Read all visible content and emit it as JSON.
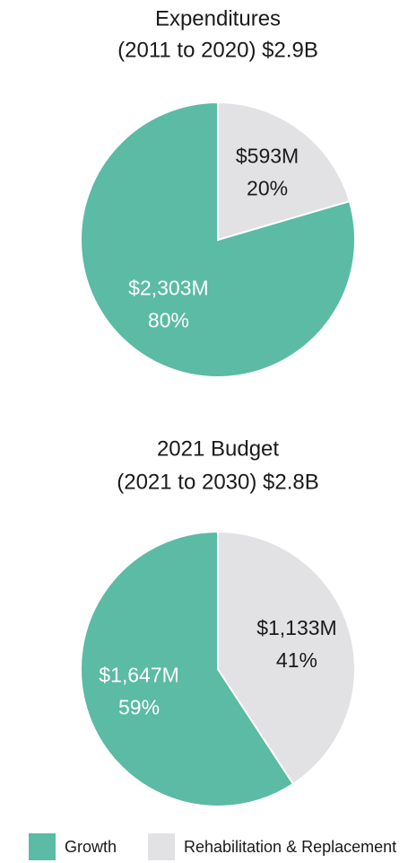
{
  "chart_data": [
    {
      "type": "pie",
      "title": "Expenditures",
      "subtitle": "(2011 to 2020) $2.9B",
      "values": [
        2303,
        593
      ],
      "value_labels": [
        "$2,303M",
        "$593M"
      ],
      "shares": [
        80,
        20
      ],
      "share_labels": [
        "80%",
        "20%"
      ]
    },
    {
      "type": "pie",
      "title": "2021 Budget",
      "subtitle": "(2021 to 2030) $2.8B",
      "values": [
        1647,
        1133
      ],
      "value_labels": [
        "$1,647M",
        "$1,133M"
      ],
      "shares": [
        59,
        41
      ],
      "share_labels": [
        "59%",
        "41%"
      ]
    }
  ],
  "legend": [
    {
      "name": "Growth",
      "color": "#5bbba4"
    },
    {
      "name": "Rehabilitation & Replacement",
      "color": "#e2e2e4"
    }
  ]
}
